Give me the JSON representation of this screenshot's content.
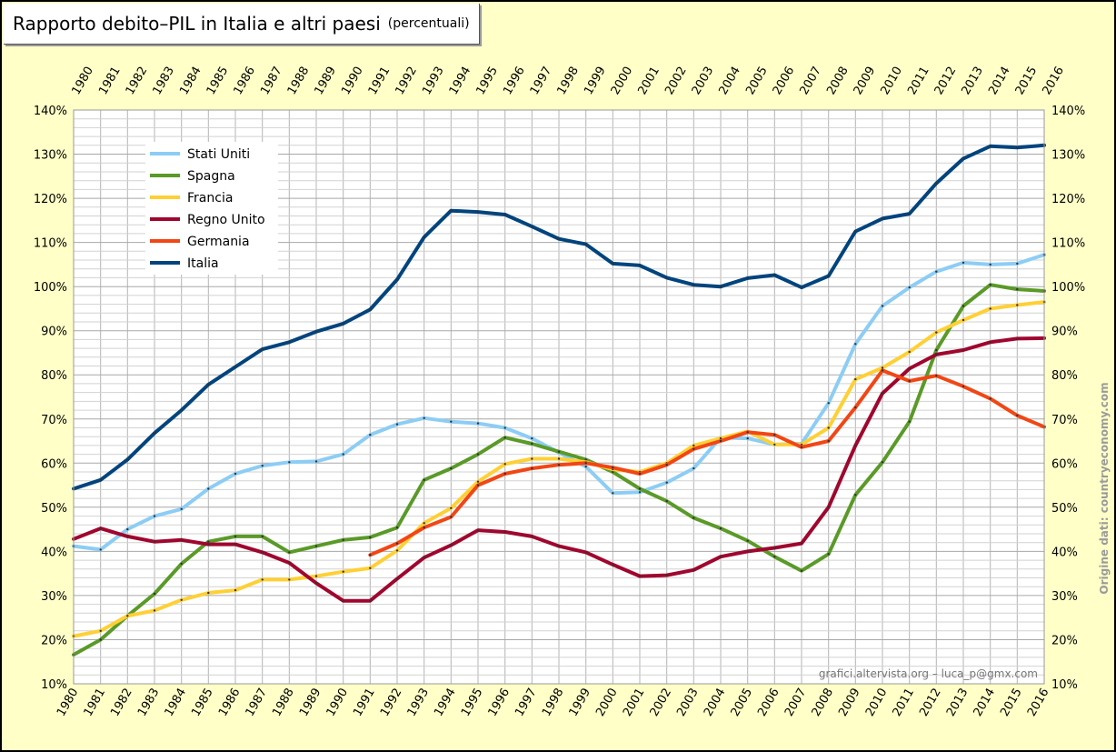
{
  "header": {
    "title": "Rapporto debito–PIL in Italia e altri paesi",
    "subtitle": "(percentuali)"
  },
  "credit": "grafici.altervista.org – luca_p@gmx.com",
  "source_note": "Origine dati: countryeconomy.com",
  "colors": {
    "background": "#ffffc8",
    "plot_background": "#ffffff",
    "grid": "#b4b4b4"
  },
  "chart_data": {
    "type": "line",
    "title": "Rapporto debito–PIL in Italia e altri paesi (percentuali)",
    "xlabel": "",
    "ylabel": "",
    "ylim": [
      10,
      140
    ],
    "ytick_step": 10,
    "y_tick_labels": [
      "10%",
      "20%",
      "30%",
      "40%",
      "50%",
      "60%",
      "70%",
      "80%",
      "90%",
      "100%",
      "110%",
      "120%",
      "130%",
      "140%"
    ],
    "grid": true,
    "legend_position": "top-left",
    "categories": [
      "1980",
      "1981",
      "1982",
      "1983",
      "1984",
      "1985",
      "1986",
      "1987",
      "1988",
      "1989",
      "1990",
      "1991",
      "1992",
      "1993",
      "1994",
      "1995",
      "1996",
      "1997",
      "1998",
      "1999",
      "2000",
      "2001",
      "2002",
      "2003",
      "2004",
      "2005",
      "2006",
      "2007",
      "2008",
      "2009",
      "2010",
      "2011",
      "2012",
      "2013",
      "2014",
      "2015",
      "2016"
    ],
    "series": [
      {
        "name": "Stati Uniti",
        "color": "#8ccdf5",
        "values": [
          41.2,
          40.4,
          45.0,
          48.0,
          49.6,
          54.2,
          57.6,
          59.4,
          60.2,
          60.4,
          62.0,
          66.4,
          68.8,
          70.2,
          69.4,
          69.0,
          68.0,
          65.6,
          62.4,
          59.2,
          53.2,
          53.4,
          55.6,
          58.8,
          65.8,
          65.6,
          64.2,
          64.4,
          73.6,
          87.0,
          95.6,
          99.8,
          103.4,
          105.4,
          105.0,
          105.2,
          107.2
        ]
      },
      {
        "name": "Spagna",
        "color": "#5a9a28",
        "values": [
          16.6,
          20.0,
          25.4,
          30.4,
          37.2,
          42.2,
          43.4,
          43.4,
          39.8,
          41.2,
          42.6,
          43.2,
          45.4,
          56.2,
          58.8,
          62.0,
          65.8,
          64.4,
          62.6,
          60.8,
          58.0,
          54.2,
          51.4,
          47.6,
          45.2,
          42.4,
          38.8,
          35.6,
          39.4,
          52.8,
          60.2,
          69.4,
          85.6,
          95.6,
          100.4,
          99.4,
          99.0
        ]
      },
      {
        "name": "Francia",
        "color": "#ffd035",
        "values": [
          20.8,
          22.0,
          25.4,
          26.6,
          29.0,
          30.6,
          31.2,
          33.6,
          33.6,
          34.4,
          35.4,
          36.2,
          40.2,
          46.4,
          49.8,
          55.8,
          59.8,
          61.0,
          61.0,
          60.2,
          58.6,
          58.0,
          60.0,
          64.0,
          65.6,
          67.2,
          64.2,
          64.2,
          68.0,
          79.0,
          81.6,
          85.2,
          89.6,
          92.4,
          95.0,
          95.8,
          96.5
        ]
      },
      {
        "name": "Regno Unito",
        "color": "#a0062e",
        "values": [
          42.8,
          45.2,
          43.4,
          42.2,
          42.6,
          41.6,
          41.6,
          39.8,
          37.4,
          32.8,
          28.8,
          28.8,
          33.8,
          38.6,
          41.4,
          44.8,
          44.4,
          43.4,
          41.2,
          39.8,
          37.0,
          34.4,
          34.6,
          35.8,
          38.8,
          40.0,
          40.8,
          41.8,
          50.0,
          64.0,
          75.8,
          81.4,
          84.6,
          85.6,
          87.4,
          88.2,
          88.3
        ]
      },
      {
        "name": "Germania",
        "color": "#f24615",
        "values": [
          null,
          null,
          null,
          null,
          null,
          null,
          null,
          null,
          null,
          null,
          null,
          39.2,
          41.8,
          45.4,
          47.8,
          55.0,
          57.6,
          58.8,
          59.6,
          60.0,
          59.0,
          57.6,
          59.6,
          63.2,
          65.0,
          67.0,
          66.4,
          63.6,
          65.0,
          72.6,
          81.0,
          78.6,
          79.8,
          77.4,
          74.6,
          70.8,
          68.2
        ]
      },
      {
        "name": "Italia",
        "color": "#00447e",
        "values": [
          54.2,
          56.2,
          60.8,
          66.8,
          72.0,
          77.8,
          81.8,
          85.8,
          87.4,
          89.8,
          91.6,
          94.8,
          101.6,
          111.2,
          117.2,
          116.9,
          116.3,
          113.6,
          110.8,
          109.6,
          105.2,
          104.8,
          102.0,
          100.4,
          100.0,
          101.9,
          102.6,
          99.8,
          102.4,
          112.5,
          115.4,
          116.5,
          123.4,
          129.0,
          131.8,
          131.5,
          132.0
        ]
      }
    ]
  }
}
